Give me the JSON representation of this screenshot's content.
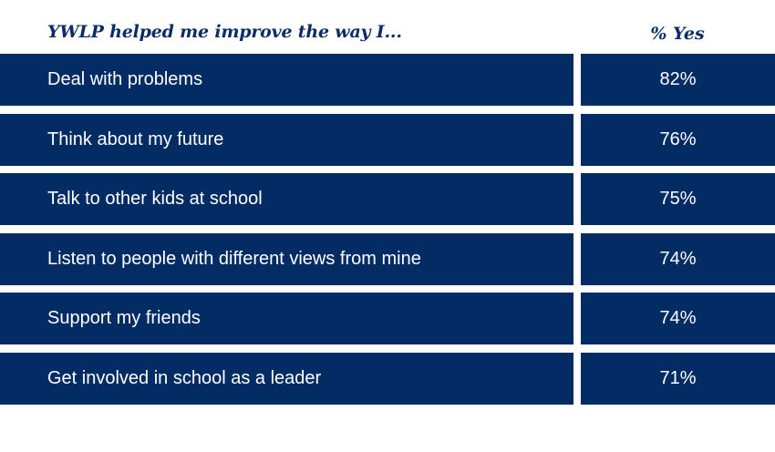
{
  "table": {
    "header_label": "YWLP helped me improve the way I...",
    "header_value": "% Yes"
  },
  "colors": {
    "row_background": "#032c65",
    "header_text": "#0b2c66",
    "row_text": "#ffffff"
  },
  "chart_data": {
    "type": "table",
    "columns": [
      "YWLP helped me improve the way I...",
      "% Yes"
    ],
    "rows": [
      {
        "label": "Deal with problems",
        "value": "82%"
      },
      {
        "label": "Think about my future",
        "value": "76%"
      },
      {
        "label": "Talk to other kids at school",
        "value": "75%"
      },
      {
        "label": "Listen to people with different views from mine",
        "value": "74%"
      },
      {
        "label": "Support my friends",
        "value": "74%"
      },
      {
        "label": "Get involved in school as a leader",
        "value": "71%"
      }
    ]
  }
}
